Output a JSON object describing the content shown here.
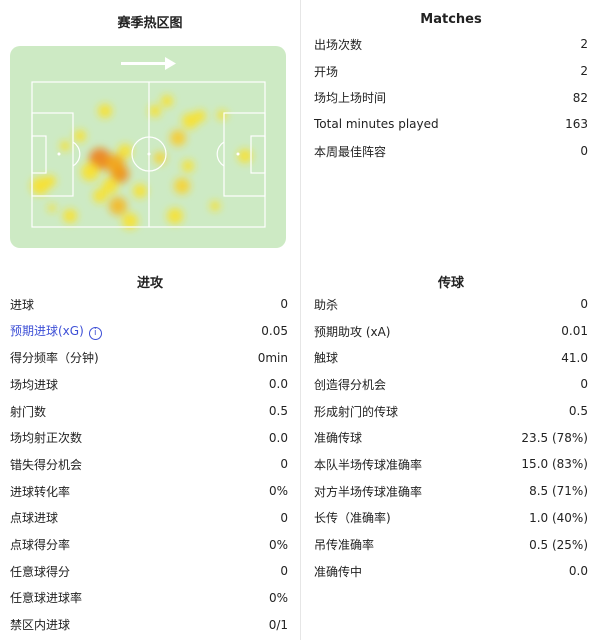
{
  "heatmap": {
    "title": "赛季热区图",
    "pitch_color": "#cdeac4",
    "direction": "right"
  },
  "matches": {
    "title": "Matches",
    "rows": [
      {
        "label": "出场次数",
        "value": "2"
      },
      {
        "label": "开场",
        "value": "2"
      },
      {
        "label": "场均上场时间",
        "value": "82"
      },
      {
        "label": "Total minutes played",
        "value": "163"
      },
      {
        "label": "本周最佳阵容",
        "value": "0"
      }
    ]
  },
  "attack": {
    "title": "进攻",
    "rows": [
      {
        "label": "进球",
        "value": "0"
      },
      {
        "label": "预期进球(xG)",
        "value": "0.05",
        "info": "i"
      },
      {
        "label": "得分频率（分钟)",
        "value": "0min"
      },
      {
        "label": "场均进球",
        "value": "0.0"
      },
      {
        "label": "射门数",
        "value": "0.5"
      },
      {
        "label": "场均射正次数",
        "value": "0.0"
      },
      {
        "label": "错失得分机会",
        "value": "0"
      },
      {
        "label": "进球转化率",
        "value": "0%"
      },
      {
        "label": "点球进球",
        "value": "0"
      },
      {
        "label": "点球得分率",
        "value": "0%"
      },
      {
        "label": "任意球得分",
        "value": "0"
      },
      {
        "label": "任意球进球率",
        "value": "0%"
      },
      {
        "label": "禁区内进球",
        "value": "0/1"
      }
    ]
  },
  "passing": {
    "title": "传球",
    "rows": [
      {
        "label": "助杀",
        "value": "0"
      },
      {
        "label": "预期助攻 (xA)",
        "value": "0.01"
      },
      {
        "label": "触球",
        "value": "41.0"
      },
      {
        "label": "创造得分机会",
        "value": "0"
      },
      {
        "label": "形成射门的传球",
        "value": "0.5"
      },
      {
        "label": "准确传球",
        "value": "23.5 (78%)"
      },
      {
        "label": "本队半场传球准确率",
        "value": "15.0 (83%)"
      },
      {
        "label": "对方半场传球准确率",
        "value": "8.5 (71%)"
      },
      {
        "label": "长传（准确率)",
        "value": "1.0 (40%)"
      },
      {
        "label": "吊传准确率",
        "value": "0.5 (25%)"
      },
      {
        "label": "准确传中",
        "value": "0.0"
      }
    ]
  }
}
